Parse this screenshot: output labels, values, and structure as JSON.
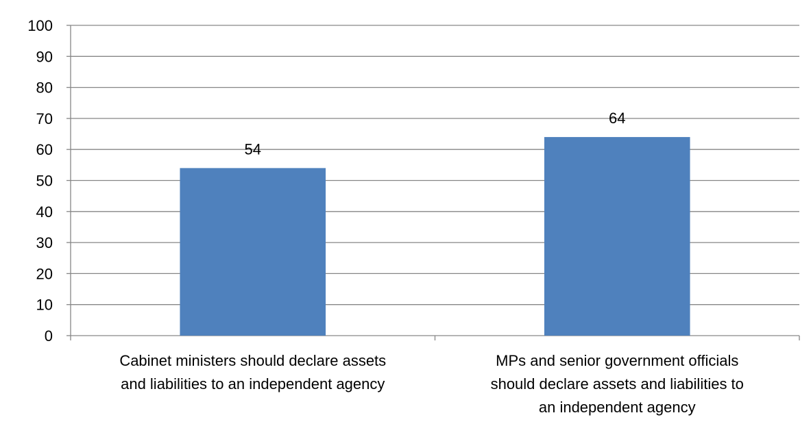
{
  "chart_data": {
    "type": "bar",
    "title": "",
    "xlabel": "",
    "ylabel": "",
    "categories": [
      "Cabinet ministers should declare assets and liabilities to an independent agency",
      "MPs and senior government officials should declare assets and liabilities to an independent agency"
    ],
    "category_lines": [
      [
        "Cabinet ministers should declare assets",
        "and liabilities to an independent agency"
      ],
      [
        "MPs and senior government officials",
        "should declare assets and liabilities to",
        "an independent agency"
      ]
    ],
    "values": [
      54,
      64
    ],
    "ylim": [
      0,
      100
    ],
    "yticks": [
      0,
      10,
      20,
      30,
      40,
      50,
      60,
      70,
      80,
      90,
      100
    ],
    "grid": true,
    "data_labels": true,
    "bar_color": "#4F81BD",
    "grid_color": "#868686"
  }
}
